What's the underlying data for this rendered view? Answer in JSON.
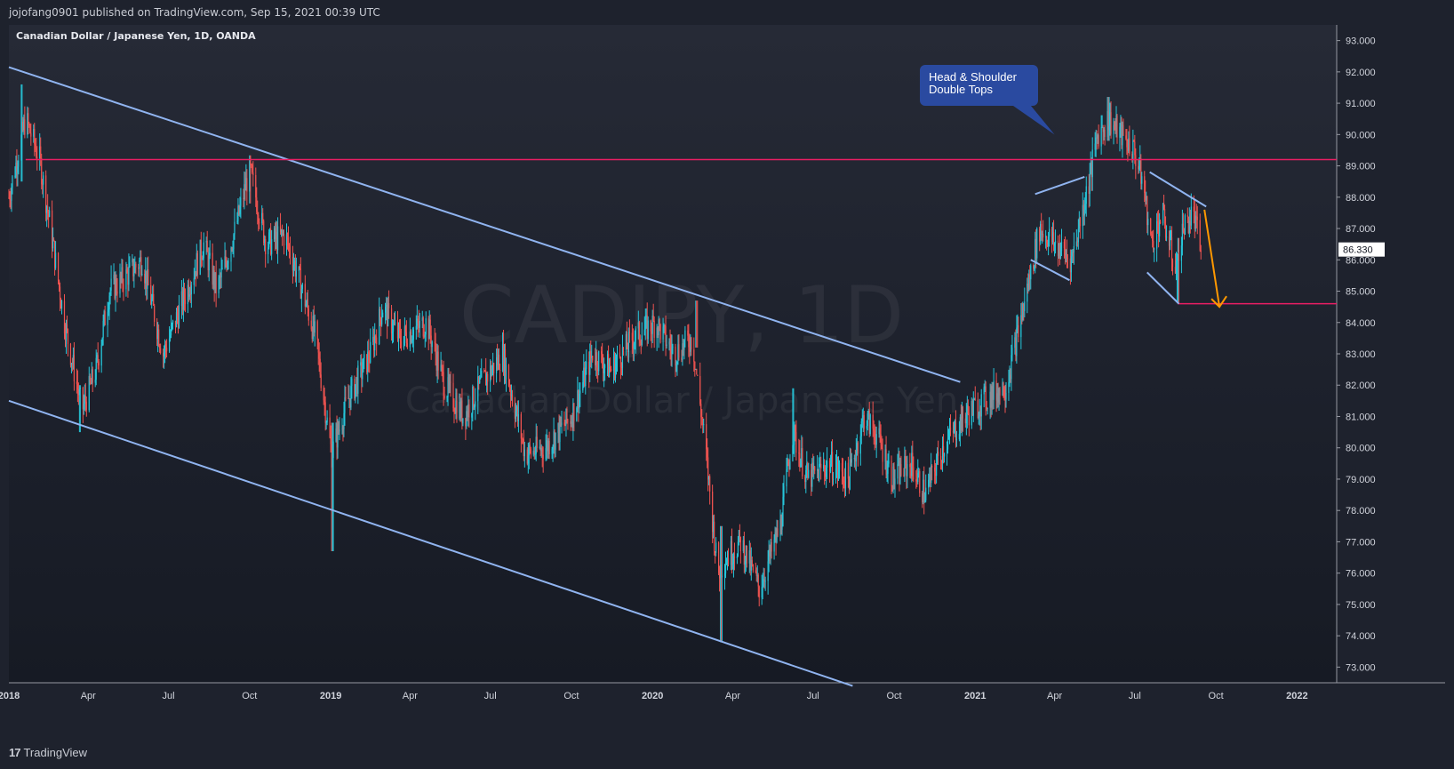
{
  "header": {
    "publish_line": "jojofang0901 published on TradingView.com, Sep 15, 2021 00:39 UTC"
  },
  "footer": {
    "brand_mark": "17",
    "brand_name": "TradingView"
  },
  "colors": {
    "background": "#1e222d",
    "bull_candle": "#26c6da",
    "bear_candle": "#ef5350",
    "trendline": "#90b4f0",
    "resistance": "#e91e63",
    "arrow": "#ff9800",
    "callout": "#2a4aa0",
    "price_tag": "#ffffff"
  },
  "chart_data": {
    "type": "candlestick",
    "title": "Canadian Dollar / Japanese Yen, 1D, OANDA",
    "watermark": {
      "symbol": "CADJPY, 1D",
      "description": "Canadian Dollar / Japanese Yen"
    },
    "last_price_label": "86.330",
    "y_axis": {
      "min": 72.5,
      "max": 93.5,
      "ticks": [
        "93.000",
        "92.000",
        "91.000",
        "90.000",
        "89.000",
        "88.000",
        "87.000",
        "86.000",
        "85.000",
        "84.000",
        "83.000",
        "82.000",
        "81.000",
        "80.000",
        "79.000",
        "78.000",
        "77.000",
        "76.000",
        "75.000",
        "74.000",
        "73.000"
      ]
    },
    "x_axis": {
      "start": "2018-01-01",
      "end": "2022-02-15",
      "labels": [
        {
          "text": "2018",
          "date": "2018-01-01",
          "bold": true
        },
        {
          "text": "Apr",
          "date": "2018-04-01"
        },
        {
          "text": "Jul",
          "date": "2018-07-01"
        },
        {
          "text": "Oct",
          "date": "2018-10-01"
        },
        {
          "text": "2019",
          "date": "2019-01-01",
          "bold": true
        },
        {
          "text": "Apr",
          "date": "2019-04-01"
        },
        {
          "text": "Jul",
          "date": "2019-07-01"
        },
        {
          "text": "Oct",
          "date": "2019-10-01"
        },
        {
          "text": "2020",
          "date": "2020-01-01",
          "bold": true
        },
        {
          "text": "Apr",
          "date": "2020-04-01"
        },
        {
          "text": "Jul",
          "date": "2020-07-01"
        },
        {
          "text": "Oct",
          "date": "2020-10-01"
        },
        {
          "text": "2021",
          "date": "2021-01-01",
          "bold": true
        },
        {
          "text": "Apr",
          "date": "2021-04-01"
        },
        {
          "text": "Jul",
          "date": "2021-07-01"
        },
        {
          "text": "Oct",
          "date": "2021-10-01"
        },
        {
          "text": "2022",
          "date": "2022-01-01",
          "bold": true
        }
      ]
    },
    "price_path": [
      [
        "2018-01-01",
        88.0
      ],
      [
        "2018-01-20",
        90.5
      ],
      [
        "2018-02-05",
        89.2
      ],
      [
        "2018-02-20",
        86.5
      ],
      [
        "2018-03-05",
        84.0
      ],
      [
        "2018-03-25",
        81.2
      ],
      [
        "2018-04-10",
        82.5
      ],
      [
        "2018-04-25",
        85.0
      ],
      [
        "2018-05-15",
        85.5
      ],
      [
        "2018-06-01",
        86.0
      ],
      [
        "2018-06-25",
        83.0
      ],
      [
        "2018-07-15",
        84.5
      ],
      [
        "2018-08-10",
        86.5
      ],
      [
        "2018-08-25",
        85.0
      ],
      [
        "2018-09-15",
        87.0
      ],
      [
        "2018-10-01",
        88.9
      ],
      [
        "2018-10-20",
        86.5
      ],
      [
        "2018-11-10",
        86.8
      ],
      [
        "2018-11-25",
        85.5
      ],
      [
        "2018-12-15",
        83.5
      ],
      [
        "2019-01-02",
        79.8
      ],
      [
        "2019-01-20",
        81.5
      ],
      [
        "2019-02-15",
        83.0
      ],
      [
        "2019-03-01",
        84.5
      ],
      [
        "2019-03-20",
        83.5
      ],
      [
        "2019-04-20",
        84.0
      ],
      [
        "2019-05-10",
        82.0
      ],
      [
        "2019-06-01",
        81.0
      ],
      [
        "2019-06-20",
        82.0
      ],
      [
        "2019-07-15",
        83.0
      ],
      [
        "2019-08-10",
        79.8
      ],
      [
        "2019-09-01",
        80.0
      ],
      [
        "2019-10-01",
        81.0
      ],
      [
        "2019-10-25",
        83.0
      ],
      [
        "2019-11-15",
        82.5
      ],
      [
        "2019-12-10",
        83.5
      ],
      [
        "2020-01-05",
        84.0
      ],
      [
        "2020-01-25",
        83.0
      ],
      [
        "2020-02-15",
        83.5
      ],
      [
        "2020-03-01",
        80.0
      ],
      [
        "2020-03-15",
        76.0
      ],
      [
        "2020-03-25",
        76.5
      ],
      [
        "2020-04-10",
        77.0
      ],
      [
        "2020-05-01",
        75.5
      ],
      [
        "2020-05-25",
        77.5
      ],
      [
        "2020-06-08",
        80.5
      ],
      [
        "2020-06-25",
        79.0
      ],
      [
        "2020-07-20",
        79.5
      ],
      [
        "2020-08-10",
        79.0
      ],
      [
        "2020-08-28",
        81.0
      ],
      [
        "2020-09-10",
        80.5
      ],
      [
        "2020-09-30",
        79.0
      ],
      [
        "2020-10-20",
        79.5
      ],
      [
        "2020-11-05",
        78.5
      ],
      [
        "2020-11-25",
        80.0
      ],
      [
        "2020-12-20",
        81.0
      ],
      [
        "2021-01-10",
        81.5
      ],
      [
        "2021-02-05",
        82.0
      ],
      [
        "2021-02-25",
        84.5
      ],
      [
        "2021-03-15",
        87.0
      ],
      [
        "2021-04-01",
        86.5
      ],
      [
        "2021-04-20",
        86.0
      ],
      [
        "2021-05-10",
        88.5
      ],
      [
        "2021-05-20",
        90.0
      ],
      [
        "2021-06-01",
        90.5
      ],
      [
        "2021-06-15",
        90.0
      ],
      [
        "2021-06-30",
        89.5
      ],
      [
        "2021-07-10",
        88.5
      ],
      [
        "2021-07-20",
        86.5
      ],
      [
        "2021-08-01",
        87.5
      ],
      [
        "2021-08-15",
        85.8
      ],
      [
        "2021-08-25",
        87.0
      ],
      [
        "2021-09-05",
        87.5
      ],
      [
        "2021-09-14",
        86.33
      ]
    ],
    "extremes": [
      {
        "date": "2018-01-15",
        "high": 91.6,
        "low": 88.5
      },
      {
        "date": "2018-03-23",
        "high": 82.0,
        "low": 80.5
      },
      {
        "date": "2018-10-01",
        "high": 89.25,
        "low": 87.8
      },
      {
        "date": "2019-01-03",
        "high": 80.8,
        "low": 76.7
      },
      {
        "date": "2020-02-20",
        "high": 84.7,
        "low": 83.2
      },
      {
        "date": "2020-03-19",
        "high": 77.5,
        "low": 73.8
      },
      {
        "date": "2020-06-08",
        "high": 81.9,
        "low": 79.8
      },
      {
        "date": "2021-06-01",
        "high": 91.2,
        "low": 89.8
      },
      {
        "date": "2021-08-19",
        "high": 86.2,
        "low": 84.65
      }
    ],
    "annotations": {
      "descending_channel_upper": {
        "from": [
          "2018-01-01",
          92.15
        ],
        "to": [
          "2020-12-15",
          82.1
        ]
      },
      "descending_channel_lower": {
        "from": [
          "2018-01-01",
          81.5
        ],
        "to": [
          "2020-08-15",
          72.4
        ]
      },
      "resistance_line": {
        "from": [
          "2018-01-20",
          89.2
        ],
        "to": [
          "2022-02-15",
          89.2
        ],
        "color": "#e91e63"
      },
      "support_line": {
        "from": [
          "2021-08-19",
          84.6
        ],
        "to": [
          "2022-02-15",
          84.6
        ],
        "color": "#e91e63"
      },
      "flag_left_top": {
        "from": [
          "2021-03-10",
          88.1
        ],
        "to": [
          "2021-05-05",
          88.65
        ]
      },
      "flag_left_bottom": {
        "from": [
          "2021-03-05",
          86.0
        ],
        "to": [
          "2021-04-18",
          85.35
        ]
      },
      "flag_right_top": {
        "from": [
          "2021-07-18",
          88.8
        ],
        "to": [
          "2021-09-20",
          87.7
        ]
      },
      "flag_right_bottom": {
        "from": [
          "2021-07-15",
          85.6
        ],
        "to": [
          "2021-08-20",
          84.6
        ]
      },
      "projection_arrow": {
        "from": [
          "2021-09-18",
          87.6
        ],
        "to": [
          "2021-10-05",
          84.5
        ]
      },
      "callout": {
        "line1": "Head & Shoulder",
        "line2": "Double Tops",
        "pointer_date": "2021-04-01",
        "pointer_price": 90.0
      }
    }
  }
}
